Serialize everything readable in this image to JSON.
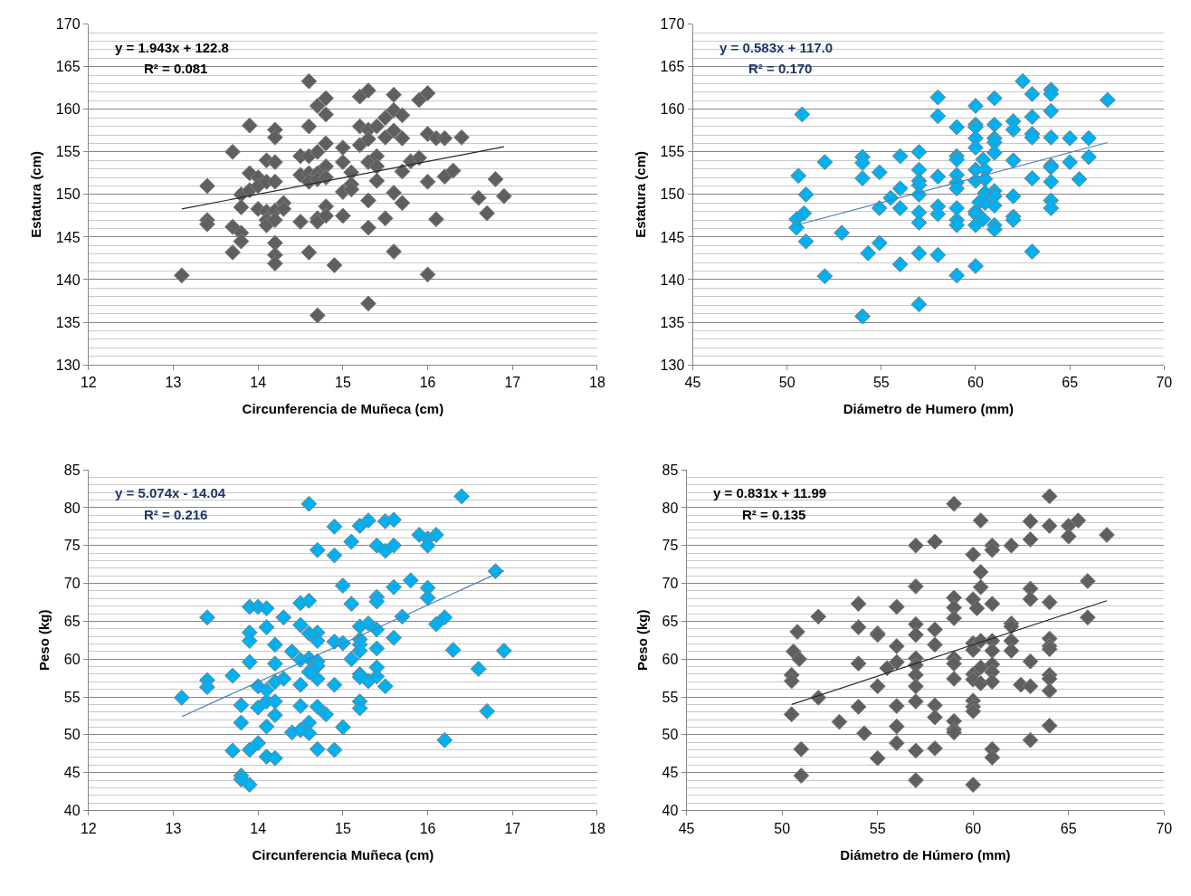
{
  "chart_data": [
    {
      "type": "scatter",
      "xlabel": "Circunferencia de Muñeca (cm)",
      "ylabel": "Estatura (cm)",
      "xlim": [
        12,
        18
      ],
      "xticks": [
        12,
        13,
        14,
        15,
        16,
        17,
        18
      ],
      "ylim": [
        130,
        170
      ],
      "yticks": [
        130,
        135,
        140,
        145,
        150,
        155,
        160,
        165,
        170
      ],
      "grid": "y",
      "marker": "diamond",
      "annotations": [
        "y = 1.943x + 122.8",
        "R² = 0.081"
      ],
      "series": [
        {
          "color": "#5f5f5f",
          "x": [
            13.1,
            13.4,
            13.4,
            13.4,
            13.7,
            13.7,
            13.7,
            13.8,
            13.8,
            13.8,
            13.8,
            13.9,
            13.9,
            13.9,
            14.0,
            14.0,
            14.0,
            14.1,
            14.1,
            14.1,
            14.1,
            14.1,
            14.2,
            14.2,
            14.2,
            14.2,
            14.2,
            14.2,
            14.2,
            14.2,
            14.2,
            14.3,
            14.3,
            14.5,
            14.5,
            14.5,
            14.6,
            14.6,
            14.6,
            14.6,
            14.6,
            14.6,
            14.7,
            14.7,
            14.7,
            14.7,
            14.7,
            14.7,
            14.7,
            14.8,
            14.8,
            14.8,
            14.8,
            14.8,
            14.8,
            14.8,
            14.9,
            15.0,
            15.0,
            15.0,
            15.0,
            15.1,
            15.1,
            15.1,
            15.2,
            15.2,
            15.2,
            15.3,
            15.3,
            15.3,
            15.3,
            15.3,
            15.3,
            15.3,
            15.4,
            15.4,
            15.4,
            15.4,
            15.5,
            15.5,
            15.5,
            15.6,
            15.6,
            15.6,
            15.6,
            15.6,
            15.7,
            15.7,
            15.7,
            15.7,
            15.8,
            15.9,
            15.9,
            16.0,
            16.0,
            16.0,
            16.0,
            16.1,
            16.1,
            16.2,
            16.2,
            16.3,
            16.4,
            16.6,
            16.7,
            16.8,
            16.9
          ],
          "values": [
            140.5,
            151,
            147,
            146.5,
            155,
            146.2,
            143.2,
            150,
            148.5,
            145.5,
            144.5,
            158.1,
            152.5,
            150.5,
            152,
            151,
            148.3,
            154,
            151.5,
            148,
            147,
            146.4,
            157.6,
            156.7,
            153.8,
            151.5,
            148.1,
            147,
            144.3,
            142.9,
            141.9,
            149,
            148.3,
            154.5,
            152.3,
            146.8,
            163.3,
            158,
            154.5,
            152.5,
            151.5,
            143.2,
            160.4,
            155,
            152.5,
            151.8,
            147.2,
            146.8,
            135.8,
            161.3,
            159.4,
            156,
            153.3,
            152,
            148.6,
            147.5,
            141.7,
            155.5,
            153.8,
            150.3,
            147.5,
            152.6,
            151.2,
            150.6,
            161.5,
            158,
            155.8,
            162.2,
            157.6,
            156.5,
            153.8,
            149.3,
            146.1,
            137.2,
            158,
            154.5,
            153.3,
            151.6,
            159,
            156.7,
            147.2,
            161.7,
            159.9,
            157.5,
            150.2,
            143.3,
            159.3,
            156.6,
            152.7,
            149,
            153.9,
            154.3,
            161.1,
            161.9,
            157.1,
            151.5,
            140.6,
            156.6,
            147.1,
            156.6,
            152.1,
            152.8,
            156.7,
            149.6,
            147.8,
            151.8,
            149.8
          ]
        },
        {
          "type": "line",
          "marker": "none",
          "color": "#262626",
          "x": [
            13.1,
            16.9
          ],
          "values": [
            148.3,
            155.6
          ]
        }
      ]
    },
    {
      "type": "scatter",
      "xlabel": "Diámetro de Humero (mm)",
      "ylabel": "Estatura (cm)",
      "xlim": [
        45,
        70
      ],
      "xticks": [
        45,
        50,
        55,
        60,
        65,
        70
      ],
      "ylim": [
        130,
        170
      ],
      "yticks": [
        130,
        135,
        140,
        145,
        150,
        155,
        160,
        165,
        170
      ],
      "grid": "y",
      "marker": "diamond",
      "annotations": [
        "y = 0.583x + 117.0",
        "R² = 0.170"
      ],
      "series": [
        {
          "color": "#00b0f0",
          "x": [
            50.8,
            50.6,
            51.0,
            50.9,
            50.5,
            50.5,
            51.0,
            52.0,
            52.0,
            52.9,
            54.0,
            54.0,
            54.0,
            54.3,
            54.0,
            54.9,
            54.9,
            54.9,
            55.5,
            56.0,
            56.0,
            56.0,
            56.0,
            57.0,
            57.0,
            57.0,
            57.0,
            57.0,
            57.0,
            57.0,
            57.0,
            57.0,
            58.0,
            58.0,
            58.0,
            58.0,
            58.0,
            58.0,
            59.0,
            59.0,
            59.0,
            59.0,
            59.0,
            59.0,
            59.0,
            59.0,
            59.0,
            59.0,
            60.0,
            60.0,
            60.0,
            60.0,
            60.0,
            60.0,
            60.0,
            60.0,
            60.0,
            60.0,
            60.0,
            60.4,
            60.5,
            60.5,
            60.5,
            60.2,
            60.5,
            60.4,
            61.0,
            61.0,
            61.0,
            61.0,
            61.0,
            61.0,
            61.0,
            61.0,
            61.0,
            61.0,
            62.0,
            62.0,
            62.0,
            62.0,
            62.0,
            62.0,
            62.5,
            63.0,
            63.0,
            63.0,
            63.0,
            63.0,
            63.0,
            64.0,
            64.0,
            64.0,
            64.0,
            64.0,
            64.0,
            64.0,
            64.0,
            64.0,
            65.0,
            65.0,
            65.5,
            66.0,
            66.0,
            67.0
          ],
          "values": [
            159.4,
            152.2,
            150.0,
            147.8,
            147.1,
            146.1,
            144.5,
            153.8,
            140.4,
            145.5,
            154.4,
            153.7,
            151.9,
            143.1,
            135.7,
            152.6,
            148.4,
            144.3,
            149.6,
            154.5,
            150.7,
            148.4,
            141.8,
            155.0,
            152.9,
            151.6,
            151.1,
            150.0,
            147.9,
            146.7,
            143.1,
            137.1,
            161.4,
            159.2,
            152.1,
            148.6,
            147.7,
            142.9,
            157.9,
            154.5,
            154.1,
            152.3,
            151.4,
            150.7,
            148.4,
            147.0,
            146.4,
            140.5,
            160.4,
            158.2,
            157.9,
            156.6,
            155.5,
            152.9,
            151.6,
            148.0,
            147.7,
            146.4,
            141.6,
            154.1,
            152.9,
            151.8,
            150.2,
            149.1,
            149.0,
            147.1,
            161.3,
            158.2,
            156.6,
            156.1,
            154.9,
            150.4,
            149.8,
            148.7,
            146.4,
            145.9,
            158.6,
            157.6,
            154.0,
            149.8,
            147.4,
            147.0,
            163.3,
            161.8,
            159.1,
            157.1,
            156.7,
            151.9,
            143.3,
            162.3,
            161.8,
            159.8,
            156.7,
            153.4,
            153.2,
            151.5,
            149.3,
            148.4,
            156.6,
            153.8,
            151.8,
            156.6,
            154.4,
            161.1
          ]
        },
        {
          "type": "line",
          "marker": "none",
          "color": "#4a7ebb",
          "x": [
            50.5,
            67
          ],
          "values": [
            146.4,
            156.1
          ]
        }
      ]
    },
    {
      "type": "scatter",
      "xlabel": "Circunferencia Muñeca (cm)",
      "ylabel": "Peso (kg)",
      "xlim": [
        12,
        18
      ],
      "xticks": [
        12,
        13,
        14,
        15,
        16,
        17,
        18
      ],
      "ylim": [
        40,
        85
      ],
      "yticks": [
        40,
        45,
        50,
        55,
        60,
        65,
        70,
        75,
        80,
        85
      ],
      "grid": "y",
      "marker": "diamond",
      "annotations": [
        "y = 5.074x - 14.04",
        "R² = 0.216"
      ],
      "series": [
        {
          "color": "#00b0f0",
          "x": [
            13.1,
            13.4,
            13.4,
            13.4,
            13.7,
            13.7,
            13.8,
            13.8,
            13.8,
            13.8,
            13.9,
            13.9,
            13.9,
            13.9,
            13.9,
            13.9,
            14.0,
            14.0,
            14.0,
            14.0,
            14.1,
            14.1,
            14.1,
            14.1,
            14.1,
            14.1,
            14.2,
            14.2,
            14.2,
            14.2,
            14.2,
            14.2,
            14.3,
            14.3,
            14.4,
            14.4,
            14.5,
            14.5,
            14.5,
            14.5,
            14.5,
            14.5,
            14.6,
            14.6,
            14.6,
            14.6,
            14.6,
            14.6,
            14.6,
            14.7,
            14.7,
            14.7,
            14.7,
            14.7,
            14.7,
            14.7,
            14.7,
            14.8,
            14.9,
            14.9,
            14.9,
            14.9,
            14.9,
            15.0,
            15.0,
            15.0,
            15.1,
            15.1,
            15.1,
            15.2,
            15.2,
            15.2,
            15.2,
            15.2,
            15.2,
            15.2,
            15.2,
            15.2,
            15.3,
            15.3,
            15.3,
            15.4,
            15.4,
            15.4,
            15.4,
            15.4,
            15.4,
            15.4,
            15.5,
            15.5,
            15.5,
            15.6,
            15.6,
            15.6,
            15.6,
            15.7,
            15.8,
            15.9,
            16.0,
            16.0,
            16.0,
            16.0,
            16.1,
            16.1,
            16.2,
            16.2,
            16.3,
            16.4,
            16.6,
            16.7,
            16.8,
            16.9
          ],
          "values": [
            54.9,
            65.5,
            57.2,
            56.3,
            57.8,
            47.9,
            53.9,
            51.6,
            44.6,
            44.1,
            43.4,
            66.9,
            63.5,
            62.4,
            59.6,
            48.0,
            66.9,
            56.4,
            53.6,
            48.9,
            66.7,
            64.2,
            55.9,
            54.4,
            51.1,
            47.1,
            61.9,
            59.4,
            57.0,
            54.4,
            52.6,
            46.9,
            65.5,
            57.4,
            61.0,
            50.3,
            67.4,
            64.5,
            59.9,
            56.6,
            53.8,
            50.6,
            80.5,
            67.7,
            63.4,
            60.1,
            58.3,
            51.6,
            50.2,
            74.4,
            63.5,
            62.4,
            59.7,
            59.1,
            57.4,
            53.7,
            48.1,
            52.7,
            77.5,
            73.7,
            62.3,
            56.6,
            48.0,
            69.7,
            62.1,
            51.0,
            75.5,
            67.3,
            60.0,
            77.6,
            64.3,
            62.6,
            61.9,
            61.1,
            58.0,
            57.6,
            54.4,
            53.5,
            78.3,
            64.7,
            57.1,
            75.0,
            68.2,
            67.6,
            63.9,
            61.4,
            58.9,
            57.7,
            78.2,
            74.3,
            56.4,
            78.4,
            75.0,
            69.5,
            62.8,
            65.6,
            70.4,
            76.4,
            75.9,
            75.0,
            69.4,
            68.1,
            76.4,
            64.6,
            65.5,
            49.3,
            61.2,
            81.5,
            58.7,
            53.1,
            71.6,
            61.1
          ]
        },
        {
          "type": "line",
          "marker": "none",
          "color": "#4a7ebb",
          "x": [
            13.1,
            16.9
          ],
          "values": [
            52.4,
            71.7
          ]
        }
      ]
    },
    {
      "type": "scatter",
      "xlabel": "Diámetro de Húmero (mm)",
      "ylabel": "Peso (kg)",
      "xlim": [
        45,
        70
      ],
      "xticks": [
        45,
        50,
        55,
        60,
        65,
        70
      ],
      "ylim": [
        40,
        85
      ],
      "yticks": [
        40,
        45,
        50,
        55,
        60,
        65,
        70,
        75,
        80,
        85
      ],
      "grid": "y",
      "marker": "diamond",
      "annotations": [
        "y = 0.831x + 11.99",
        "R² = 0.135"
      ],
      "series": [
        {
          "color": "#5f5f5f",
          "x": [
            50.5,
            50.5,
            50.5,
            50.6,
            50.9,
            50.8,
            51.0,
            51.0,
            51.9,
            51.9,
            53.0,
            54.0,
            54.0,
            54.0,
            54.0,
            54.3,
            55.0,
            55.0,
            55.0,
            55.0,
            55.5,
            56.0,
            56.0,
            56.0,
            56.0,
            56.0,
            56.0,
            57.0,
            57.0,
            57.0,
            57.0,
            57.0,
            57.0,
            57.0,
            57.0,
            57.0,
            57.0,
            57.0,
            58.0,
            58.0,
            58.0,
            58.0,
            58.0,
            58.0,
            59.0,
            59.0,
            59.0,
            59.0,
            59.0,
            59.0,
            59.0,
            59.0,
            59.0,
            59.0,
            60.0,
            60.0,
            60.0,
            60.0,
            60.0,
            60.0,
            60.0,
            60.0,
            60.0,
            60.0,
            60.2,
            60.4,
            60.4,
            60.4,
            60.4,
            60.4,
            60.4,
            61.0,
            61.0,
            61.0,
            61.0,
            61.0,
            61.0,
            61.0,
            61.0,
            61.0,
            61.0,
            62.0,
            62.0,
            62.0,
            62.0,
            62.0,
            62.5,
            63.0,
            63.0,
            63.0,
            63.0,
            63.0,
            63.0,
            63.0,
            64.0,
            64.0,
            64.0,
            64.0,
            64.0,
            64.0,
            64.0,
            64.0,
            64.0,
            64.0,
            65.0,
            65.0,
            65.5,
            66.0,
            66.0,
            67.0
          ],
          "values": [
            52.7,
            57.9,
            57.1,
            61.0,
            60.0,
            63.6,
            48.1,
            44.6,
            65.6,
            54.9,
            51.7,
            67.3,
            64.2,
            59.4,
            53.7,
            50.2,
            63.4,
            63.2,
            56.4,
            46.9,
            58.8,
            66.9,
            61.7,
            59.6,
            53.8,
            51.1,
            48.9,
            75.0,
            69.6,
            64.6,
            63.2,
            60.1,
            59.2,
            57.9,
            56.4,
            54.4,
            47.9,
            44.0,
            75.5,
            63.9,
            61.9,
            53.9,
            52.3,
            48.2,
            80.5,
            68.1,
            66.8,
            65.4,
            60.1,
            59.4,
            57.4,
            51.8,
            50.7,
            50.3,
            73.8,
            67.9,
            62.1,
            61.2,
            58.0,
            57.3,
            54.5,
            53.7,
            53.1,
            43.4,
            66.7,
            62.4,
            58.9,
            56.8,
            78.3,
            71.5,
            69.5,
            75.0,
            74.4,
            67.3,
            62.4,
            61.1,
            59.3,
            58.3,
            57.0,
            48.1,
            47.0,
            75.0,
            64.7,
            64.3,
            62.4,
            61.1,
            56.6,
            78.2,
            75.8,
            69.3,
            67.9,
            59.7,
            56.4,
            49.3,
            81.5,
            77.6,
            67.5,
            62.7,
            61.7,
            61.3,
            57.9,
            57.4,
            55.8,
            51.2,
            77.6,
            76.2,
            78.3,
            70.3,
            65.5,
            76.4
          ]
        },
        {
          "type": "line",
          "marker": "none",
          "color": "#262626",
          "x": [
            50.5,
            67
          ],
          "values": [
            54.0,
            67.7
          ]
        }
      ]
    }
  ]
}
